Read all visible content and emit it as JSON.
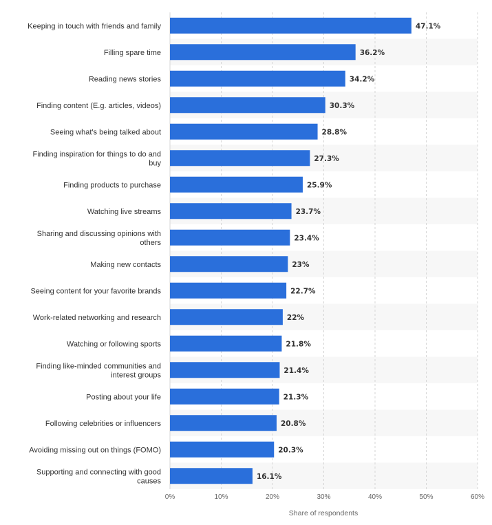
{
  "chart_data": {
    "type": "bar",
    "orientation": "horizontal",
    "categories": [
      [
        "Keeping in touch with friends and family"
      ],
      [
        "Filling spare time"
      ],
      [
        "Reading news stories"
      ],
      [
        "Finding content (E.g. articles, videos)"
      ],
      [
        "Seeing what's being talked about"
      ],
      [
        "Finding inspiration for things to do and",
        "buy"
      ],
      [
        "Finding products to purchase"
      ],
      [
        "Watching live streams"
      ],
      [
        "Sharing and discussing opinions with",
        "others"
      ],
      [
        "Making new contacts"
      ],
      [
        "Seeing content for your favorite brands"
      ],
      [
        "Work-related networking and research"
      ],
      [
        "Watching or following sports"
      ],
      [
        "Finding like-minded communities and",
        "interest groups"
      ],
      [
        "Posting about your life"
      ],
      [
        "Following celebrities or influencers"
      ],
      [
        "Avoiding missing out on things (FOMO)"
      ],
      [
        "Supporting and connecting with good",
        "causes"
      ]
    ],
    "values": [
      47.1,
      36.2,
      34.2,
      30.3,
      28.8,
      27.3,
      25.9,
      23.7,
      23.4,
      23,
      22.7,
      22,
      21.8,
      21.4,
      21.3,
      20.8,
      20.3,
      16.1
    ],
    "value_labels": [
      "47.1%",
      "36.2%",
      "34.2%",
      "30.3%",
      "28.8%",
      "27.3%",
      "25.9%",
      "23.7%",
      "23.4%",
      "23%",
      "22.7%",
      "22%",
      "21.8%",
      "21.4%",
      "21.3%",
      "20.8%",
      "20.3%",
      "16.1%"
    ],
    "xticks": [
      0,
      10,
      20,
      30,
      40,
      50,
      60
    ],
    "xtick_labels": [
      "0%",
      "10%",
      "20%",
      "30%",
      "40%",
      "50%",
      "60%"
    ],
    "xlim": [
      0,
      60
    ],
    "xlabel": "Share of respondents",
    "title": "",
    "grid": "vertical dashed",
    "band_shading": "alternating rows",
    "bar_color": "#2a6fdb",
    "label_color": "#333333",
    "grid_color": "#d6d6d6",
    "band_color": "#f7f7f7"
  }
}
